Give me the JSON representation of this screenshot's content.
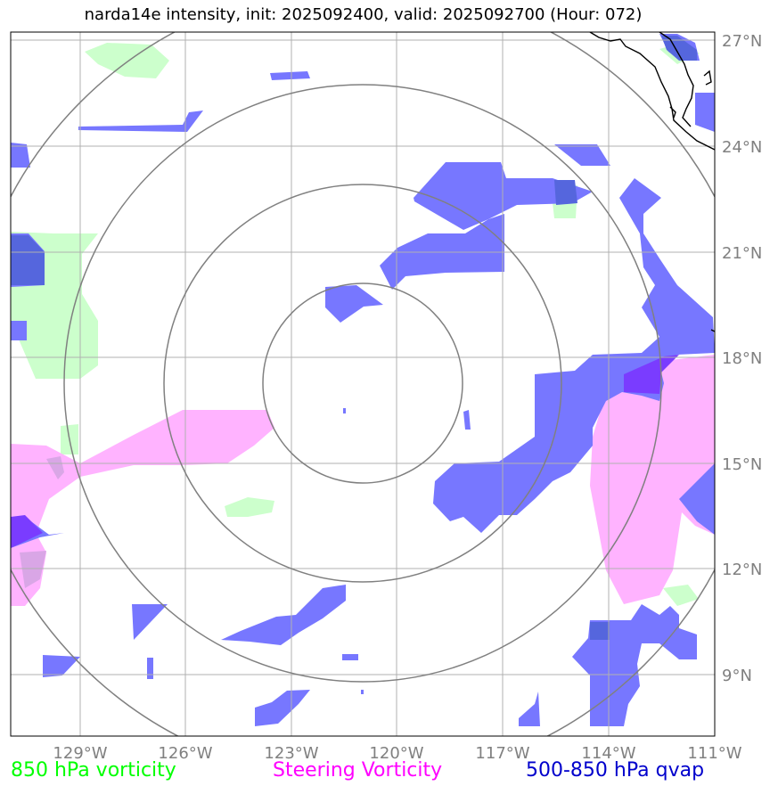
{
  "title": "narda14e intensity, init: 2025092400, valid: 2025092700 (Hour: 072)",
  "lon_labels": [
    "129°W",
    "126°W",
    "123°W",
    "120°W",
    "117°W",
    "114°W",
    "111°W"
  ],
  "lat_labels": [
    "27°N",
    "24°N",
    "21°N",
    "18°N",
    "15°N",
    "12°N",
    "9°N"
  ],
  "legend": [
    {
      "label": "850 hPa vorticity",
      "color": "#00ff00"
    },
    {
      "label": "Steering Vorticity",
      "color": "#ff00ff"
    },
    {
      "label": "500-850 hPa qvap",
      "color": "#0000cc"
    }
  ],
  "colors": {
    "vorticity_850": "#ccffcc",
    "steering_vorticity": "#ffb3ff",
    "qvap": "#7777ff",
    "qvap_dark": "#5566dd",
    "overlap": "#7a3cff",
    "range_rings": "#808080",
    "gridlines": "#b0b0b0",
    "coastline": "#000000"
  }
}
